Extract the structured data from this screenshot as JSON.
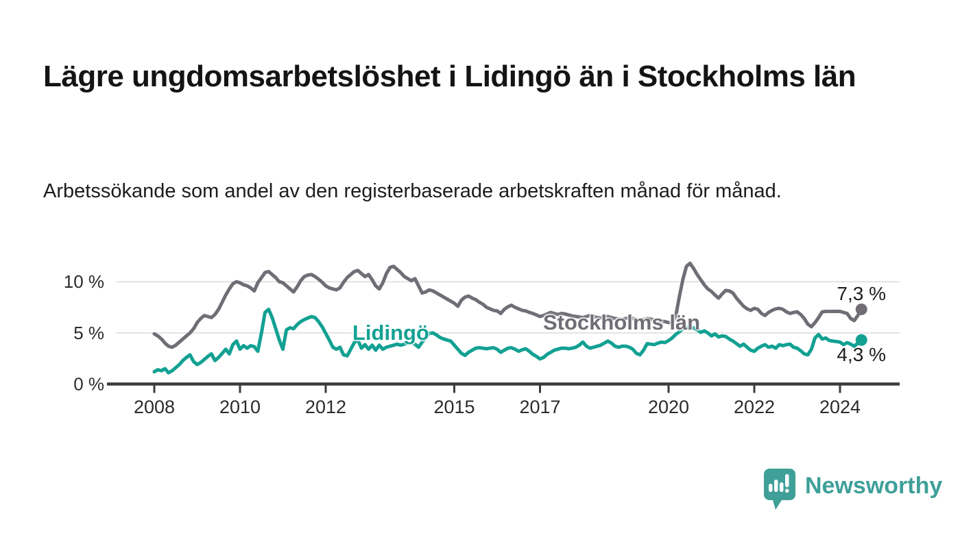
{
  "header": {
    "title": "Lägre ungdomsarbetslöshet i Lidingö än i Stockholms län",
    "subtitle": "Arbetssökande som andel av den registerbaserade arbetskraften månad för månad."
  },
  "chart_data": {
    "type": "line",
    "title": "Lägre ungdomsarbetslöshet i Lidingö än i Stockholms län",
    "subtitle": "Arbetssökande som andel av den registerbaserade arbetskraften månad för månad.",
    "unit": "%",
    "frequency": "monthly",
    "start": "2008-01",
    "end": "2024-07",
    "grid": "horizontal",
    "legend_position": "inline-labels",
    "x_axis": {
      "tick_years": [
        2008,
        2010,
        2012,
        2015,
        2017,
        2020,
        2022,
        2024
      ],
      "tick_labels": [
        "2008",
        "2010",
        "2012",
        "2015",
        "2017",
        "2020",
        "2022",
        "2024"
      ]
    },
    "y_axis": {
      "ticks": [
        0,
        5,
        10
      ],
      "tick_labels": [
        "0 %",
        "5 %",
        "10 %"
      ],
      "range": [
        0,
        12.5
      ]
    },
    "series": [
      {
        "name": "Stockholms län",
        "color": "#716d76",
        "end_value": 7.3,
        "end_label": "7,3 %",
        "values": [
          4.9,
          4.7,
          4.4,
          4.0,
          3.7,
          3.6,
          3.8,
          4.1,
          4.4,
          4.7,
          5.0,
          5.4,
          6.0,
          6.4,
          6.7,
          6.6,
          6.5,
          6.8,
          7.3,
          8.0,
          8.7,
          9.3,
          9.8,
          10.0,
          9.9,
          9.7,
          9.6,
          9.4,
          9.1,
          9.9,
          10.4,
          10.9,
          11.0,
          10.7,
          10.4,
          10.0,
          9.9,
          9.6,
          9.3,
          9.0,
          9.5,
          10.1,
          10.5,
          10.65,
          10.7,
          10.5,
          10.25,
          9.95,
          9.6,
          9.4,
          9.3,
          9.2,
          9.4,
          9.95,
          10.4,
          10.7,
          11.0,
          11.1,
          10.8,
          10.5,
          10.7,
          10.2,
          9.6,
          9.3,
          9.9,
          10.8,
          11.4,
          11.5,
          11.2,
          10.9,
          10.5,
          10.3,
          10.1,
          10.3,
          9.6,
          8.9,
          9.0,
          9.2,
          9.1,
          8.9,
          8.7,
          8.5,
          8.3,
          8.1,
          7.9,
          7.6,
          8.2,
          8.5,
          8.6,
          8.4,
          8.25,
          8.0,
          7.8,
          7.5,
          7.35,
          7.2,
          7.15,
          6.9,
          7.3,
          7.55,
          7.7,
          7.5,
          7.35,
          7.2,
          7.15,
          7.0,
          6.9,
          6.75,
          6.6,
          6.7,
          6.85,
          7.0,
          6.9,
          6.8,
          6.9,
          6.85,
          6.75,
          6.65,
          6.6,
          6.55,
          6.5,
          6.6,
          6.7,
          6.6,
          6.5,
          6.45,
          6.55,
          6.6,
          6.5,
          6.4,
          6.35,
          6.3,
          6.4,
          6.5,
          6.4,
          6.3,
          6.25,
          6.3,
          6.4,
          6.35,
          6.25,
          6.2,
          6.15,
          6.1,
          6.0,
          6.0,
          6.6,
          8.5,
          10.2,
          11.5,
          11.8,
          11.3,
          10.7,
          10.2,
          9.7,
          9.3,
          9.05,
          8.7,
          8.4,
          8.8,
          9.15,
          9.1,
          8.9,
          8.4,
          8.0,
          7.6,
          7.35,
          7.2,
          7.4,
          7.3,
          6.9,
          6.7,
          7.0,
          7.2,
          7.35,
          7.4,
          7.3,
          7.05,
          6.9,
          7.0,
          7.05,
          6.8,
          6.4,
          5.85,
          5.6,
          6.0,
          6.5,
          7.05,
          7.1,
          7.1,
          7.1,
          7.1,
          7.1,
          7.0,
          6.9,
          6.4,
          6.2,
          6.7,
          7.3
        ]
      },
      {
        "name": "Lidingö",
        "color": "#12a193",
        "end_value": 4.3,
        "end_label": "4,3 %",
        "values": [
          1.2,
          1.4,
          1.3,
          1.5,
          1.1,
          1.3,
          1.6,
          1.9,
          2.3,
          2.6,
          2.85,
          2.2,
          1.9,
          2.1,
          2.4,
          2.7,
          2.95,
          2.3,
          2.6,
          3.0,
          3.4,
          2.95,
          3.85,
          4.2,
          3.4,
          3.75,
          3.5,
          3.75,
          3.65,
          3.2,
          5.0,
          7.0,
          7.3,
          6.5,
          5.4,
          4.3,
          3.4,
          5.3,
          5.5,
          5.4,
          5.8,
          6.1,
          6.3,
          6.45,
          6.6,
          6.5,
          6.1,
          5.6,
          4.95,
          4.3,
          3.6,
          3.4,
          3.6,
          2.85,
          2.75,
          3.4,
          4.05,
          4.3,
          3.5,
          3.85,
          3.4,
          3.8,
          3.3,
          3.8,
          3.4,
          3.6,
          3.7,
          3.8,
          3.9,
          3.8,
          3.9,
          4.0,
          4.0,
          3.9,
          3.6,
          4.1,
          4.5,
          4.95,
          5.0,
          4.8,
          4.55,
          4.4,
          4.3,
          4.2,
          3.8,
          3.4,
          3.0,
          2.8,
          3.1,
          3.3,
          3.5,
          3.55,
          3.5,
          3.45,
          3.5,
          3.55,
          3.4,
          3.1,
          3.3,
          3.5,
          3.55,
          3.4,
          3.2,
          3.35,
          3.45,
          3.2,
          2.9,
          2.7,
          2.45,
          2.6,
          2.9,
          3.1,
          3.3,
          3.4,
          3.5,
          3.5,
          3.45,
          3.5,
          3.6,
          3.8,
          4.1,
          3.7,
          3.5,
          3.6,
          3.7,
          3.8,
          4.0,
          4.2,
          4.0,
          3.7,
          3.6,
          3.7,
          3.7,
          3.6,
          3.4,
          3.0,
          2.85,
          3.3,
          3.95,
          3.9,
          3.85,
          4.0,
          4.1,
          4.05,
          4.25,
          4.5,
          4.85,
          5.1,
          5.4,
          5.55,
          5.4,
          5.5,
          5.3,
          5.05,
          5.2,
          5.0,
          4.7,
          4.9,
          4.6,
          4.7,
          4.65,
          4.4,
          4.2,
          3.95,
          3.7,
          3.9,
          3.6,
          3.3,
          3.2,
          3.5,
          3.7,
          3.85,
          3.6,
          3.7,
          3.5,
          3.85,
          3.75,
          3.85,
          3.9,
          3.6,
          3.5,
          3.25,
          2.95,
          2.85,
          3.4,
          4.5,
          4.85,
          4.4,
          4.5,
          4.25,
          4.2,
          4.15,
          4.1,
          3.85,
          4.05,
          3.9,
          3.7,
          4.0,
          4.3
        ]
      }
    ]
  },
  "annotations": {
    "series_label_stockholm": "Stockholms län",
    "series_label_lidingo": "Lidingö",
    "end_label_stockholm": "7,3 %",
    "end_label_lidingo": "4,3 %"
  },
  "footer": {
    "brand": "Newsworthy"
  },
  "colors": {
    "stockholm_line": "#716d76",
    "lidingo_line": "#12a193",
    "gridline": "#e3e3e3",
    "axis": "#3b3b3b",
    "axis_text": "#2b2b2b",
    "text": "#141414",
    "brand_teal": "#3f9f99",
    "background": "#ffffff"
  }
}
